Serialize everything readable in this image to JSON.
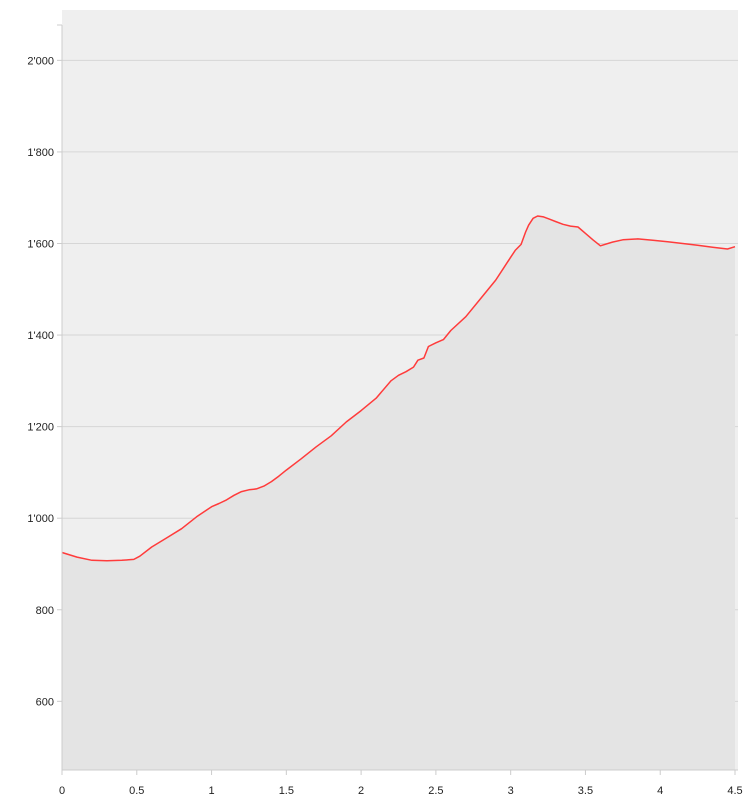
{
  "chart_data": {
    "type": "area",
    "title": "",
    "xlabel": "",
    "ylabel": "",
    "xlim": [
      0,
      4.52
    ],
    "ylim": [
      450,
      2110
    ],
    "x_ticks": [
      0,
      0.5,
      1,
      1.5,
      2,
      2.5,
      3,
      3.5,
      4,
      4.5
    ],
    "x_tick_labels": [
      "0",
      "0.5",
      "1",
      "1.5",
      "2",
      "2.5",
      "3",
      "3.5",
      "4",
      "4.5"
    ],
    "y_ticks": [
      600,
      800,
      1000,
      1200,
      1400,
      1600,
      1800,
      2000
    ],
    "y_tick_labels": [
      "600",
      "800",
      "1'000",
      "1'200",
      "1'400",
      "1'600",
      "1'800",
      "2'000"
    ],
    "grid": true,
    "legend": "none",
    "colors": {
      "plot_background": "#efefef",
      "area_fill": "#e4e4e4",
      "line": "#ff3b3b",
      "grid": "#d6d6d6",
      "axis": "#cccccc"
    },
    "series": [
      {
        "x": [
          0,
          0.1,
          0.2,
          0.3,
          0.4,
          0.48,
          0.52,
          0.6,
          0.7,
          0.8,
          0.9,
          1.0,
          1.05,
          1.1,
          1.15,
          1.2,
          1.25,
          1.3,
          1.35,
          1.4,
          1.45,
          1.5,
          1.6,
          1.7,
          1.8,
          1.9,
          2.0,
          2.1,
          2.2,
          2.25,
          2.3,
          2.35,
          2.38,
          2.42,
          2.45,
          2.5,
          2.55,
          2.6,
          2.7,
          2.8,
          2.9,
          2.95,
          3.0,
          3.03,
          3.07,
          3.1,
          3.12,
          3.15,
          3.18,
          3.22,
          3.26,
          3.3,
          3.35,
          3.4,
          3.45,
          3.5,
          3.55,
          3.6,
          3.68,
          3.75,
          3.85,
          3.95,
          4.05,
          4.15,
          4.25,
          4.35,
          4.45,
          4.5
        ],
        "y": [
          925,
          915,
          908,
          907,
          908,
          910,
          917,
          937,
          957,
          977,
          1003,
          1025,
          1032,
          1040,
          1050,
          1058,
          1062,
          1064,
          1070,
          1080,
          1092,
          1105,
          1130,
          1156,
          1180,
          1210,
          1235,
          1262,
          1300,
          1312,
          1320,
          1330,
          1345,
          1350,
          1375,
          1383,
          1390,
          1410,
          1440,
          1480,
          1520,
          1545,
          1570,
          1585,
          1598,
          1625,
          1640,
          1655,
          1660,
          1658,
          1653,
          1648,
          1642,
          1638,
          1636,
          1622,
          1608,
          1595,
          1603,
          1608,
          1610,
          1607,
          1604,
          1600,
          1596,
          1592,
          1588,
          1593
        ]
      }
    ]
  }
}
